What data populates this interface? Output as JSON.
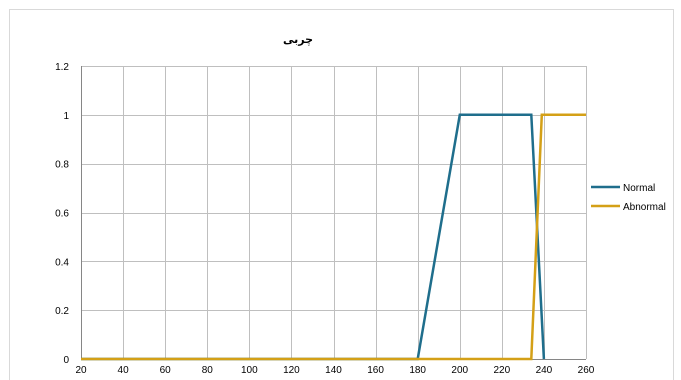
{
  "chart_data": {
    "type": "line",
    "title": "چربی",
    "xlabel": "",
    "ylabel": "",
    "xlim": [
      20,
      260
    ],
    "ylim": [
      0,
      1.2
    ],
    "x_ticks": [
      20,
      40,
      60,
      80,
      100,
      120,
      140,
      160,
      180,
      200,
      220,
      240,
      260
    ],
    "y_ticks": [
      0,
      0.2,
      0.4,
      0.6,
      0.8,
      1,
      1.2
    ],
    "y_tick_labels": [
      "0",
      "0.2",
      "0.4",
      "0.6",
      "0.8",
      "1",
      "1.2"
    ],
    "grid": true,
    "legend_position": "right",
    "series": [
      {
        "name": "Normal",
        "color": "#1f6e8c",
        "points": [
          [
            20,
            0
          ],
          [
            180,
            0
          ],
          [
            200,
            1
          ],
          [
            234,
            1
          ],
          [
            240,
            0
          ]
        ]
      },
      {
        "name": "Abnormal",
        "color": "#d4a017",
        "points": [
          [
            20,
            0
          ],
          [
            234,
            0
          ],
          [
            239,
            1
          ],
          [
            260,
            1
          ]
        ]
      }
    ]
  }
}
